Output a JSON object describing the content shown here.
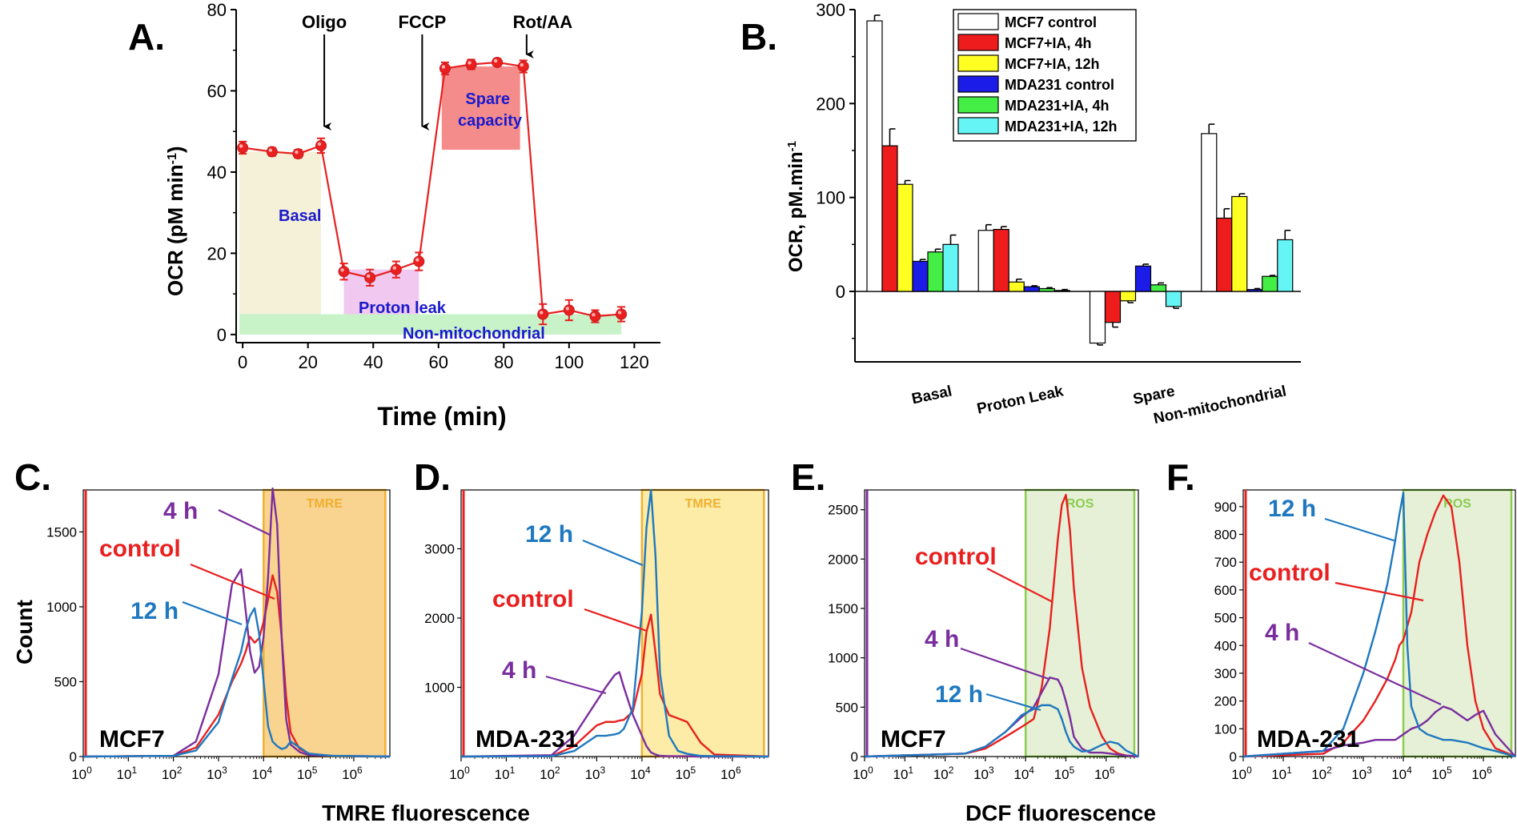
{
  "chart_data": [
    {
      "panel": "A.",
      "type": "line",
      "xlabel": "Time (min)",
      "ylabel": "OCR (pM min",
      "ylabel_sup": "-1",
      "ylabel_end": ")",
      "xlim": [
        -2,
        128
      ],
      "ylim": [
        -2,
        80
      ],
      "xticks": [
        0,
        20,
        40,
        60,
        80,
        100,
        120
      ],
      "yticks": [
        0,
        20,
        40,
        60,
        80
      ],
      "series": [
        {
          "name": "OCR",
          "color": "#e82020",
          "x": [
            0,
            9,
            17,
            24,
            31,
            39,
            47,
            54,
            62,
            70,
            78,
            86,
            92,
            100,
            108,
            116
          ],
          "y": [
            46,
            45,
            44.5,
            46.5,
            15.5,
            14,
            16,
            18,
            65.5,
            66.5,
            67,
            66,
            5,
            6,
            4.5,
            5
          ],
          "err": [
            1.5,
            1,
            1,
            1.8,
            2,
            2,
            2,
            2.2,
            1.5,
            1.2,
            0.8,
            1.5,
            2.5,
            2.5,
            1.5,
            1.8
          ]
        }
      ],
      "injections": [
        {
          "label": "Oligo",
          "x": 25
        },
        {
          "label": "FCCP",
          "x": 55
        },
        {
          "label": "Rot/AA",
          "x": 87
        }
      ],
      "regions": [
        {
          "label": "Basal",
          "color": "#f5f0d8"
        },
        {
          "label": "Proton leak",
          "color": "#f0c8f0"
        },
        {
          "label": "Spare capacity",
          "color": "#f48c8c"
        },
        {
          "label": "Non-mitochondrial",
          "color": "#c8f2c8"
        }
      ]
    },
    {
      "panel": "B.",
      "type": "bar",
      "ylabel": "OCR, pM.min",
      "ylabel_sup": "-1",
      "ylim": [
        -75,
        300
      ],
      "yticks": [
        0,
        100,
        200,
        300
      ],
      "categories": [
        "Basal",
        "Proton Leak",
        "Spare",
        "Non-mitochondrial"
      ],
      "series": [
        {
          "name": "MCF7 control",
          "color": "#ffffff",
          "values": [
            288,
            65,
            -55,
            168
          ],
          "err": [
            6,
            6,
            2,
            10
          ]
        },
        {
          "name": "MCF7+IA, 4h",
          "color": "#ee1c1c",
          "values": [
            155,
            66,
            -33,
            78
          ],
          "err": [
            18,
            3,
            5,
            10
          ]
        },
        {
          "name": "MCF7+IA, 12h",
          "color": "#ffff22",
          "values": [
            114,
            10,
            -10,
            101
          ],
          "err": [
            4,
            3,
            2,
            3
          ]
        },
        {
          "name": "MDA231 control",
          "color": "#1c1ce8",
          "values": [
            32,
            5,
            27,
            2
          ],
          "err": [
            2,
            1,
            2,
            1
          ]
        },
        {
          "name": "MDA231+IA, 4h",
          "color": "#44ee44",
          "values": [
            42,
            3,
            7,
            16
          ],
          "err": [
            3,
            1,
            2,
            1
          ]
        },
        {
          "name": "MDA231+IA, 12h",
          "color": "#66f5f5",
          "values": [
            50,
            1,
            -16,
            55
          ],
          "err": [
            10,
            1,
            2,
            10
          ]
        }
      ]
    },
    {
      "panel": "C.",
      "type": "line",
      "subtype": "flow-histogram",
      "cell": "MCF7",
      "ylabel": "Count",
      "xlabel": "TMRE fluorescence",
      "gate_label": "TMRE",
      "gate_color": "#f5c66b",
      "xlim_log10": [
        0,
        6.8
      ],
      "ylim": [
        0,
        1780
      ],
      "yticks": [
        0,
        500,
        1000,
        1500
      ],
      "x_log10": [
        0,
        2.0,
        2.5,
        3.0,
        3.3,
        3.5,
        3.6,
        3.7,
        3.8,
        3.9,
        4.0,
        4.1,
        4.2,
        4.3,
        4.4,
        4.5,
        4.6,
        4.8,
        5.0,
        5.5,
        6.8
      ],
      "series": [
        {
          "name": "control",
          "color": "#e82020",
          "values": [
            0,
            5,
            60,
            280,
            500,
            620,
            700,
            800,
            760,
            790,
            900,
            1050,
            1210,
            1100,
            800,
            400,
            160,
            50,
            20,
            5,
            0
          ]
        },
        {
          "name": "4 h",
          "color": "#7a2e9e",
          "values": [
            0,
            5,
            100,
            550,
            1150,
            1250,
            980,
            700,
            560,
            600,
            800,
            1200,
            1790,
            1550,
            800,
            250,
            80,
            30,
            10,
            5,
            0
          ]
        },
        {
          "name": "12 h",
          "color": "#1f78c0",
          "values": [
            0,
            5,
            40,
            230,
            520,
            700,
            840,
            940,
            990,
            820,
            500,
            200,
            100,
            70,
            50,
            60,
            100,
            60,
            20,
            5,
            0
          ]
        }
      ],
      "labels": {
        "control": "control",
        "t4": "4 h",
        "t12": "12 h"
      }
    },
    {
      "panel": "D.",
      "type": "line",
      "subtype": "flow-histogram",
      "cell": "MDA-231",
      "gate_label": "TMRE",
      "gate_color": "#fbe58a",
      "xlim_log10": [
        0,
        6.8
      ],
      "ylim": [
        0,
        3850
      ],
      "yticks": [
        1000,
        2000,
        3000
      ],
      "x_log10": [
        0,
        2.0,
        2.5,
        3.0,
        3.2,
        3.4,
        3.5,
        3.6,
        3.8,
        4.0,
        4.1,
        4.2,
        4.3,
        4.4,
        4.6,
        4.8,
        5.0,
        5.3,
        5.6,
        6.8
      ],
      "series": [
        {
          "name": "control",
          "color": "#e82020",
          "values": [
            0,
            5,
            150,
            450,
            500,
            500,
            520,
            530,
            650,
            1200,
            1800,
            2050,
            1500,
            900,
            600,
            550,
            500,
            200,
            30,
            0
          ]
        },
        {
          "name": "4 h",
          "color": "#7a2e9e",
          "values": [
            0,
            20,
            300,
            800,
            1000,
            1180,
            1220,
            1000,
            600,
            300,
            150,
            60,
            30,
            10,
            5,
            5,
            5,
            0,
            0,
            0
          ]
        },
        {
          "name": "12 h",
          "color": "#1f78c0",
          "values": [
            0,
            5,
            80,
            300,
            300,
            320,
            340,
            400,
            700,
            2100,
            3300,
            3850,
            2900,
            1200,
            300,
            80,
            40,
            10,
            5,
            0
          ]
        }
      ],
      "labels": {
        "control": "control",
        "t4": "4 h",
        "t12": "12 h"
      }
    },
    {
      "panel": "E.",
      "type": "line",
      "subtype": "flow-histogram",
      "cell": "MCF7",
      "xlabel": "DCF fluorescence",
      "gate_label": "ROS",
      "gate_color": "#dcebc8",
      "xlim_log10": [
        0,
        6.8
      ],
      "ylim": [
        0,
        2700
      ],
      "yticks": [
        0,
        500,
        1000,
        1500,
        2000,
        2500
      ],
      "x_log10": [
        0,
        2.5,
        3.0,
        3.5,
        3.9,
        4.2,
        4.4,
        4.6,
        4.8,
        4.9,
        5.0,
        5.1,
        5.2,
        5.4,
        5.6,
        5.9,
        6.1,
        6.3,
        6.5,
        6.8
      ],
      "series": [
        {
          "name": "control",
          "color": "#e82020",
          "values": [
            0,
            30,
            80,
            200,
            300,
            380,
            700,
            1300,
            2200,
            2550,
            2650,
            2300,
            1700,
            900,
            500,
            200,
            80,
            30,
            10,
            0
          ]
        },
        {
          "name": "4 h",
          "color": "#7a2e9e",
          "values": [
            0,
            30,
            100,
            250,
            400,
            500,
            650,
            800,
            780,
            700,
            560,
            400,
            200,
            80,
            40,
            40,
            30,
            20,
            10,
            0
          ]
        },
        {
          "name": "12 h",
          "color": "#1f78c0",
          "values": [
            0,
            30,
            100,
            250,
            420,
            480,
            520,
            520,
            480,
            380,
            250,
            150,
            100,
            50,
            60,
            120,
            150,
            130,
            60,
            0
          ]
        }
      ],
      "labels": {
        "control": "control",
        "t4": "4 h",
        "t12": "12 h"
      }
    },
    {
      "panel": "F.",
      "type": "line",
      "subtype": "flow-histogram",
      "cell": "MDA-231",
      "gate_label": "ROS",
      "gate_color": "#dcebc8",
      "xlim_log10": [
        0,
        6.8
      ],
      "ylim": [
        0,
        960
      ],
      "yticks": [
        0,
        100,
        200,
        300,
        400,
        500,
        600,
        700,
        800,
        900
      ],
      "x_log10": [
        0,
        2.0,
        2.5,
        3.0,
        3.3,
        3.6,
        3.8,
        3.9,
        4.0,
        4.1,
        4.2,
        4.4,
        4.6,
        4.8,
        5.0,
        5.2,
        5.4,
        5.6,
        5.8,
        6.0,
        6.3,
        6.8
      ],
      "series": [
        {
          "name": "control",
          "color": "#e82020",
          "values": [
            0,
            10,
            50,
            130,
            200,
            280,
            350,
            400,
            420,
            470,
            520,
            700,
            800,
            880,
            940,
            900,
            700,
            400,
            200,
            100,
            30,
            0
          ]
        },
        {
          "name": "4 h",
          "color": "#7a2e9e",
          "values": [
            0,
            20,
            40,
            50,
            60,
            60,
            60,
            70,
            80,
            90,
            100,
            110,
            130,
            160,
            180,
            170,
            150,
            130,
            150,
            165,
            80,
            0
          ]
        },
        {
          "name": "12 h",
          "color": "#1f78c0",
          "values": [
            0,
            20,
            100,
            300,
            450,
            620,
            780,
            870,
            950,
            400,
            180,
            100,
            80,
            70,
            60,
            60,
            55,
            50,
            40,
            30,
            20,
            0
          ]
        }
      ],
      "labels": {
        "control": "control",
        "t4": "4 h",
        "t12": "12 h"
      }
    }
  ]
}
